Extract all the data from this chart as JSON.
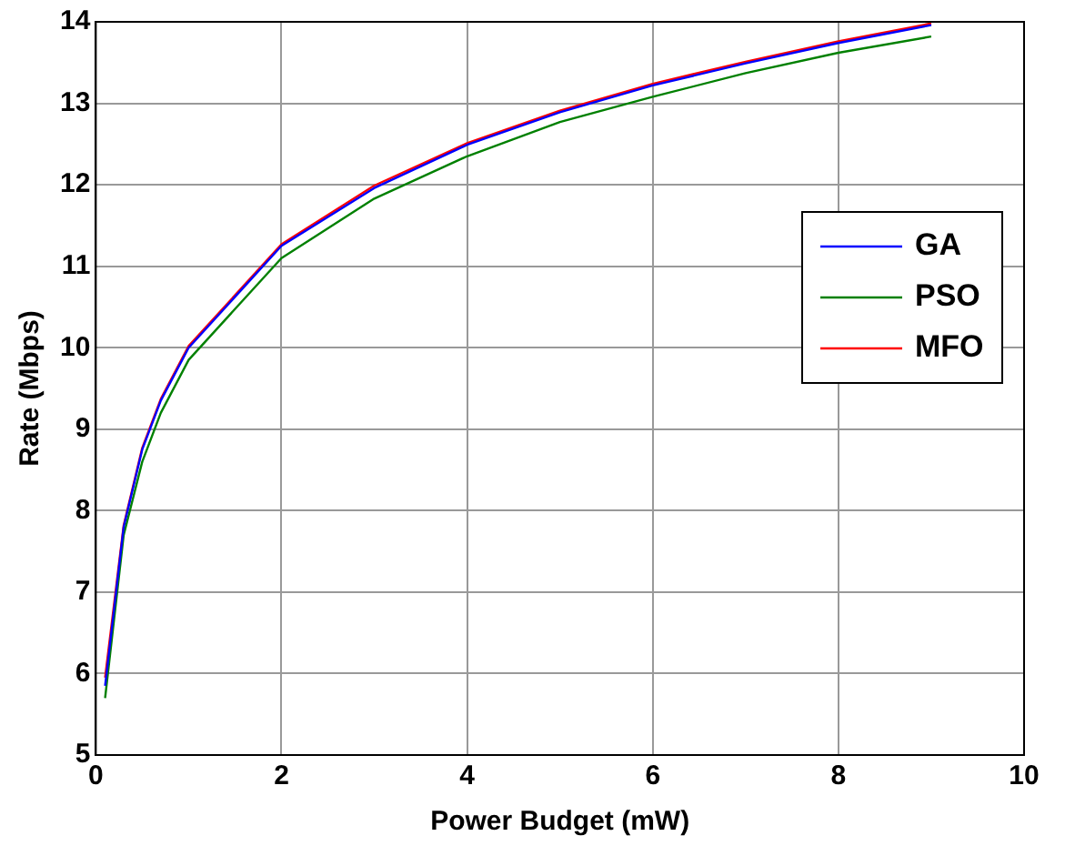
{
  "chart_data": {
    "type": "line",
    "xlabel": "Power Budget (mW)",
    "ylabel": "Rate (Mbps)",
    "x": [
      0.1,
      0.3,
      0.5,
      0.7,
      1,
      2,
      3,
      4,
      5,
      6,
      7,
      8,
      9
    ],
    "series": [
      {
        "name": "GA",
        "color": "#0000ff",
        "values": [
          5.85,
          7.8,
          8.75,
          9.35,
          10.0,
          11.25,
          11.96,
          12.49,
          12.89,
          13.22,
          13.49,
          13.74,
          13.96
        ]
      },
      {
        "name": "PSO",
        "color": "#008000",
        "values": [
          5.7,
          7.7,
          8.6,
          9.2,
          9.85,
          11.1,
          11.83,
          12.35,
          12.77,
          13.08,
          13.37,
          13.62,
          13.82
        ]
      },
      {
        "name": "MFO",
        "color": "#ff0000",
        "values": [
          5.95,
          7.82,
          8.77,
          9.37,
          10.02,
          11.27,
          11.99,
          12.51,
          12.91,
          13.24,
          13.51,
          13.76,
          13.98
        ]
      }
    ],
    "xlim": [
      0,
      10
    ],
    "xticks": [
      0,
      2,
      4,
      6,
      8,
      10
    ],
    "ylim": [
      5,
      14
    ],
    "yticks": [
      5,
      6,
      7,
      8,
      9,
      10,
      11,
      12,
      13,
      14
    ],
    "grid": true,
    "legend": "right",
    "marker": "none",
    "line_style": "solid"
  }
}
